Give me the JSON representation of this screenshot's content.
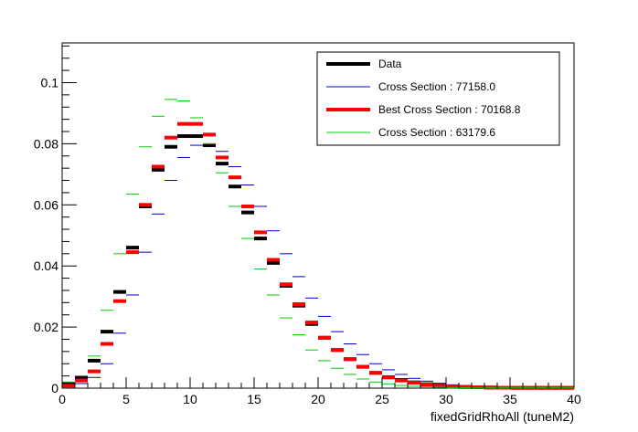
{
  "chart_data": {
    "type": "histogram",
    "title": "",
    "xlabel": "fixedGridRhoAll (tuneM2)",
    "ylabel": "",
    "xlim": [
      0,
      40
    ],
    "ylim": [
      0,
      0.113
    ],
    "grid": false,
    "legend_position": "top-right",
    "x_ticks": [
      0,
      5,
      10,
      15,
      20,
      25,
      30,
      35,
      40
    ],
    "x_tick_labels": [
      "0",
      "5",
      "10",
      "15",
      "20",
      "25",
      "30",
      "35",
      "40"
    ],
    "y_ticks": [
      0,
      0.02,
      0.04,
      0.06,
      0.08,
      0.1
    ],
    "y_tick_labels": [
      "0",
      "0.02",
      "0.04",
      "0.06",
      "0.08",
      "0.1"
    ],
    "bin_edges": [
      0,
      1,
      2,
      3,
      4,
      5,
      6,
      7,
      8,
      9,
      10,
      11,
      12,
      13,
      14,
      15,
      16,
      17,
      18,
      19,
      20,
      21,
      22,
      23,
      24,
      25,
      26,
      27,
      28,
      29,
      30,
      31,
      32,
      33,
      34,
      35,
      36,
      37,
      38,
      39,
      40
    ],
    "series": [
      {
        "name": "Data",
        "color": "#000000",
        "style": "thick",
        "values": [
          0.0015,
          0.0035,
          0.009,
          0.0185,
          0.0315,
          0.046,
          0.0595,
          0.0715,
          0.079,
          0.0825,
          0.0825,
          0.0795,
          0.0735,
          0.066,
          0.0575,
          0.049,
          0.041,
          0.0335,
          0.027,
          0.021,
          0.0165,
          0.0125,
          0.0095,
          0.007,
          0.005,
          0.0036,
          0.0027,
          0.0019,
          0.0013,
          0.0009,
          0.0006,
          0.0004,
          0.0003,
          0.0002,
          0.00015,
          0.0001,
          0.0001,
          0.0001,
          0.0001,
          0.0001
        ]
      },
      {
        "name": "Cross Section : 77158.0",
        "color": "#0000cc",
        "style": "thin",
        "values": [
          0.0005,
          0.0015,
          0.0035,
          0.008,
          0.018,
          0.0305,
          0.0445,
          0.057,
          0.068,
          0.0755,
          0.0795,
          0.08,
          0.0775,
          0.0725,
          0.0665,
          0.0595,
          0.0515,
          0.044,
          0.0365,
          0.0295,
          0.0235,
          0.0185,
          0.0145,
          0.011,
          0.008,
          0.006,
          0.0045,
          0.0032,
          0.0023,
          0.0016,
          0.0011,
          0.0008,
          0.0005,
          0.0004,
          0.0003,
          0.0002,
          0.00015,
          0.0001,
          0.0001,
          0.0001
        ]
      },
      {
        "name": "Best Cross Section : 70168.8",
        "color": "#ff0000",
        "style": "thick",
        "values": [
          0.0008,
          0.0025,
          0.0055,
          0.0145,
          0.0285,
          0.0445,
          0.06,
          0.0725,
          0.082,
          0.0865,
          0.0865,
          0.083,
          0.0755,
          0.069,
          0.0595,
          0.051,
          0.042,
          0.034,
          0.0275,
          0.0215,
          0.0165,
          0.0125,
          0.0095,
          0.007,
          0.005,
          0.0035,
          0.0025,
          0.0018,
          0.0012,
          0.0008,
          0.0005,
          0.0004,
          0.0003,
          0.0002,
          0.00015,
          0.0001,
          0.0001,
          0.0001,
          0.0001,
          0.0001
        ]
      },
      {
        "name": "Cross Section : 63179.6",
        "color": "#00cc00",
        "style": "thin",
        "values": [
          0.002,
          0.004,
          0.0105,
          0.0255,
          0.044,
          0.0635,
          0.079,
          0.089,
          0.0945,
          0.094,
          0.0885,
          0.08,
          0.0705,
          0.0595,
          0.049,
          0.039,
          0.0305,
          0.023,
          0.0175,
          0.0125,
          0.009,
          0.0065,
          0.0045,
          0.003,
          0.002,
          0.0014,
          0.0009,
          0.0006,
          0.0004,
          0.0003,
          0.0002,
          0.00015,
          0.0001,
          0.0001,
          0.0001,
          0.0001,
          0.0001,
          0.0001,
          0.0001,
          0.0001
        ]
      }
    ],
    "tail_fill": {
      "color": "#cc7a00",
      "from_x": 30,
      "to_x": 40
    }
  }
}
